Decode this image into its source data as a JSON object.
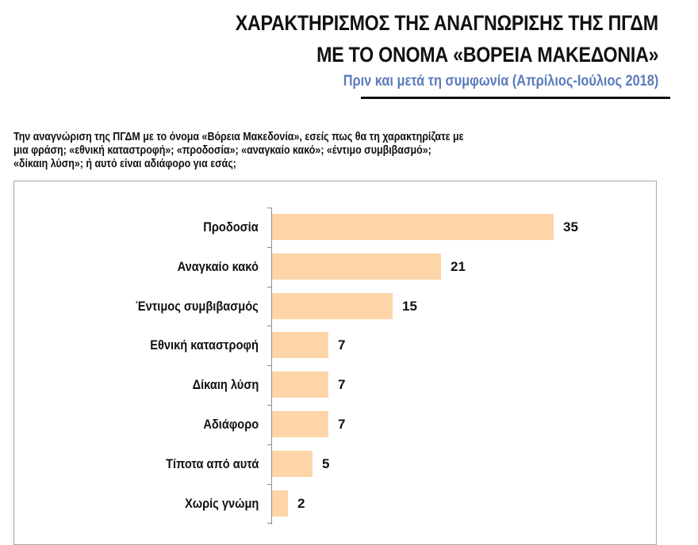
{
  "header": {
    "title_line1": "ΧΑΡΑΚΤΗΡΙΣΜΟΣ ΤΗΣ ΑΝΑΓΝΩΡΙΣΗΣ ΤΗΣ ΠΓΔΜ",
    "title_line2": "ΜΕ ΤΟ ΟΝΟΜΑ «ΒΟΡΕΙΑ ΜΑΚΕΔΟΝΙΑ»",
    "subtitle": "Πριν και μετά τη συμφωνία (Απρίλιος-Ιούλιος 2018)"
  },
  "question": {
    "line1": "Την αναγνώριση της ΠΓΔΜ με το όνομα «Βόρεια Μακεδονία», εσείς πως θα τη χαρακτηρίζατε με",
    "line2": "μια φράση; «εθνική καταστροφή»; «προδοσία»; «αναγκαίο κακό»; «έντιμο συμβιβασμό»;",
    "line3": "«δίκαιη λύση»; ή αυτό είναι αδιάφορο για εσάς;"
  },
  "colors": {
    "bar": "#fdd5a8",
    "subtitle": "#5b7bbd",
    "text": "#111111"
  },
  "chart_data": {
    "type": "bar",
    "orientation": "horizontal",
    "title": "ΧΑΡΑΚΤΗΡΙΣΜΟΣ ΤΗΣ ΑΝΑΓΝΩΡΙΣΗΣ ΤΗΣ ΠΓΔΜ ΜΕ ΤΟ ΟΝΟΜΑ «ΒΟΡΕΙΑ ΜΑΚΕΔΟΝΙΑ»",
    "subtitle": "Πριν και μετά τη συμφωνία (Απρίλιος-Ιούλιος 2018)",
    "categories": [
      "Προδοσία",
      "Αναγκαίο κακό",
      "Έντιμος συμβιβασμός",
      "Εθνική καταστροφή",
      "Δίκαιη λύση",
      "Αδιάφορο",
      "Τίποτα από αυτά",
      "Χωρίς γνώμη"
    ],
    "values": [
      35,
      21,
      15,
      7,
      7,
      7,
      5,
      2
    ],
    "xlabel": "",
    "ylabel": "",
    "xlim": [
      0,
      40
    ],
    "grid": false,
    "legend": "none",
    "data_labels": true
  }
}
